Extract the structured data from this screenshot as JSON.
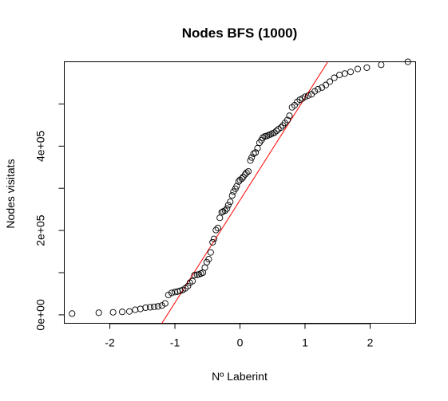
{
  "chart_data": {
    "type": "scatter",
    "title": "Nodes BFS (1000)",
    "xlabel": "Nº Laberint",
    "ylabel": "Nodes visitats",
    "xlim": [
      -2.7,
      2.7
    ],
    "ylim": [
      -20000,
      600000
    ],
    "x_ticks": [
      -2,
      -1,
      0,
      1,
      2
    ],
    "x_tick_labels": [
      "-2",
      "-1",
      "0",
      "1",
      "2"
    ],
    "y_ticks": [
      0,
      100000,
      200000,
      300000,
      400000,
      500000
    ],
    "y_tick_labels": [
      "0e+00",
      "",
      "2e+05",
      "",
      "4e+05",
      ""
    ],
    "grid": false,
    "point_color": "#000000",
    "line_color": "#ff0000",
    "qq_line": {
      "x1": -1.2,
      "y1": -20000,
      "x2": 1.35,
      "y2": 600000
    },
    "points": [
      [
        -2.58,
        3000
      ],
      [
        -2.17,
        5000
      ],
      [
        -1.95,
        6000
      ],
      [
        -1.81,
        7000
      ],
      [
        -1.7,
        8000
      ],
      [
        -1.61,
        12000
      ],
      [
        -1.53,
        14000
      ],
      [
        -1.45,
        17000
      ],
      [
        -1.38,
        18000
      ],
      [
        -1.32,
        19000
      ],
      [
        -1.26,
        20000
      ],
      [
        -1.2,
        22000
      ],
      [
        -1.15,
        27000
      ],
      [
        -1.1,
        47000
      ],
      [
        -1.05,
        52000
      ],
      [
        -1.0,
        54000
      ],
      [
        -0.96,
        55000
      ],
      [
        -0.92,
        57000
      ],
      [
        -0.88,
        59000
      ],
      [
        -0.84,
        63000
      ],
      [
        -0.8,
        68000
      ],
      [
        -0.77,
        76000
      ],
      [
        -0.73,
        80000
      ],
      [
        -0.7,
        94000
      ],
      [
        -0.66,
        95000
      ],
      [
        -0.63,
        96000
      ],
      [
        -0.6,
        98000
      ],
      [
        -0.57,
        100000
      ],
      [
        -0.54,
        112000
      ],
      [
        -0.51,
        125000
      ],
      [
        -0.48,
        132000
      ],
      [
        -0.45,
        148000
      ],
      [
        -0.42,
        172000
      ],
      [
        -0.4,
        180000
      ],
      [
        -0.37,
        201000
      ],
      [
        -0.34,
        206000
      ],
      [
        -0.31,
        230000
      ],
      [
        -0.28,
        243000
      ],
      [
        -0.26,
        245000
      ],
      [
        -0.23,
        247000
      ],
      [
        -0.2,
        252000
      ],
      [
        -0.18,
        260000
      ],
      [
        -0.15,
        268000
      ],
      [
        -0.12,
        283000
      ],
      [
        -0.1,
        292000
      ],
      [
        -0.07,
        299000
      ],
      [
        -0.05,
        305000
      ],
      [
        -0.02,
        316000
      ],
      [
        0.0,
        320000
      ],
      [
        0.03,
        323000
      ],
      [
        0.05,
        327000
      ],
      [
        0.08,
        333000
      ],
      [
        0.1,
        337000
      ],
      [
        0.13,
        340000
      ],
      [
        0.16,
        366000
      ],
      [
        0.18,
        373000
      ],
      [
        0.21,
        382000
      ],
      [
        0.24,
        385000
      ],
      [
        0.27,
        395000
      ],
      [
        0.3,
        408000
      ],
      [
        0.33,
        414000
      ],
      [
        0.35,
        420000
      ],
      [
        0.38,
        423000
      ],
      [
        0.41,
        424000
      ],
      [
        0.44,
        426000
      ],
      [
        0.47,
        428000
      ],
      [
        0.5,
        430000
      ],
      [
        0.53,
        432000
      ],
      [
        0.56,
        436000
      ],
      [
        0.59,
        440000
      ],
      [
        0.63,
        444000
      ],
      [
        0.66,
        449000
      ],
      [
        0.69,
        455000
      ],
      [
        0.73,
        462000
      ],
      [
        0.76,
        472000
      ],
      [
        0.8,
        492000
      ],
      [
        0.84,
        497000
      ],
      [
        0.88,
        505000
      ],
      [
        0.92,
        510000
      ],
      [
        0.96,
        513000
      ],
      [
        1.0,
        517000
      ],
      [
        1.05,
        520000
      ],
      [
        1.1,
        523000
      ],
      [
        1.15,
        530000
      ],
      [
        1.2,
        535000
      ],
      [
        1.26,
        539000
      ],
      [
        1.32,
        545000
      ],
      [
        1.38,
        553000
      ],
      [
        1.45,
        562000
      ],
      [
        1.53,
        569000
      ],
      [
        1.61,
        572000
      ],
      [
        1.7,
        576000
      ],
      [
        1.81,
        583000
      ],
      [
        1.95,
        586000
      ],
      [
        2.17,
        593000
      ],
      [
        2.58,
        600000
      ]
    ]
  }
}
